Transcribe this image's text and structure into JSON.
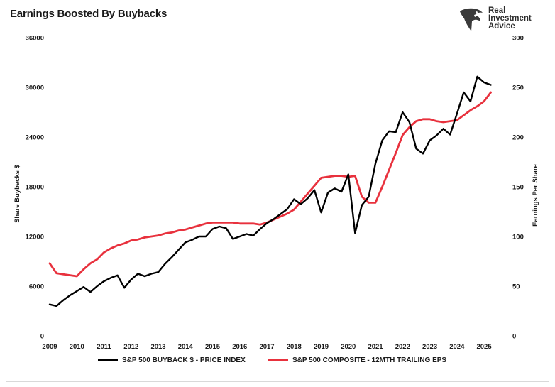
{
  "header": {
    "title": "Earnings Boosted By Buybacks",
    "logo": {
      "line1": "Real",
      "line2": "Investment",
      "line3": "Advice",
      "icon": "eagle-head-icon"
    }
  },
  "chart_data": {
    "type": "line",
    "title": "Earnings Boosted By Buybacks",
    "xlabel": "",
    "ylabel": "Share Buybacks $",
    "y2label": "Earnings Per Share",
    "xlim": [
      2009,
      2025.6
    ],
    "ylim": [
      0,
      36000
    ],
    "y2lim": [
      0,
      300
    ],
    "x_ticks": [
      "2009",
      "2010",
      "2011",
      "2012",
      "2013",
      "2014",
      "2015",
      "2016",
      "2017",
      "2018",
      "2019",
      "2020",
      "2021",
      "2022",
      "2023",
      "2024",
      "2025"
    ],
    "y_ticks": [
      "0",
      "6000",
      "12000",
      "18000",
      "24000",
      "30000",
      "36000"
    ],
    "y2_ticks": [
      "0",
      "50",
      "100",
      "150",
      "200",
      "250",
      "300"
    ],
    "grid": false,
    "legend_position": "bottom",
    "series": [
      {
        "name": "S&P 500 BUYBACK $ - PRICE INDEX",
        "axis": "left",
        "color": "#000000",
        "x": [
          2009.0,
          2009.25,
          2009.5,
          2009.75,
          2010.0,
          2010.25,
          2010.5,
          2010.75,
          2011.0,
          2011.25,
          2011.5,
          2011.75,
          2012.0,
          2012.25,
          2012.5,
          2012.75,
          2013.0,
          2013.25,
          2013.5,
          2013.75,
          2014.0,
          2014.25,
          2014.5,
          2014.75,
          2015.0,
          2015.25,
          2015.5,
          2015.75,
          2016.0,
          2016.25,
          2016.5,
          2016.75,
          2017.0,
          2017.25,
          2017.5,
          2017.75,
          2018.0,
          2018.25,
          2018.5,
          2018.75,
          2019.0,
          2019.25,
          2019.5,
          2019.75,
          2020.0,
          2020.25,
          2020.5,
          2020.75,
          2021.0,
          2021.25,
          2021.5,
          2021.75,
          2022.0,
          2022.25,
          2022.5,
          2022.75,
          2023.0,
          2023.25,
          2023.5,
          2023.75,
          2024.0,
          2024.25,
          2024.5,
          2024.75,
          2025.0,
          2025.25
        ],
        "y": [
          3800,
          3600,
          4300,
          4900,
          5400,
          5900,
          5300,
          6000,
          6600,
          7000,
          7300,
          5800,
          6800,
          7500,
          7200,
          7500,
          7700,
          8700,
          9500,
          10400,
          11300,
          11600,
          12000,
          12000,
          12900,
          13200,
          13000,
          11700,
          12000,
          12300,
          12100,
          12900,
          13600,
          14100,
          14700,
          15300,
          16500,
          15900,
          16600,
          17600,
          14900,
          17300,
          17800,
          17400,
          19500,
          12400,
          15800,
          16800,
          20800,
          23600,
          24700,
          24600,
          27000,
          25800,
          22600,
          22000,
          23600,
          24200,
          25000,
          24300,
          26800,
          29400,
          28300,
          31300,
          30600,
          30300
        ]
      },
      {
        "name": "S&P 500 COMPOSITE - 12MTH TRAILING EPS",
        "axis": "right",
        "color": "#e8313d",
        "x": [
          2009.0,
          2009.25,
          2009.5,
          2009.75,
          2010.0,
          2010.25,
          2010.5,
          2010.75,
          2011.0,
          2011.25,
          2011.5,
          2011.75,
          2012.0,
          2012.25,
          2012.5,
          2012.75,
          2013.0,
          2013.25,
          2013.5,
          2013.75,
          2014.0,
          2014.25,
          2014.5,
          2014.75,
          2015.0,
          2015.25,
          2015.5,
          2015.75,
          2016.0,
          2016.25,
          2016.5,
          2016.75,
          2017.0,
          2017.25,
          2017.5,
          2017.75,
          2018.0,
          2018.25,
          2018.5,
          2018.75,
          2019.0,
          2019.25,
          2019.5,
          2019.75,
          2020.0,
          2020.25,
          2020.5,
          2020.75,
          2021.0,
          2021.25,
          2021.5,
          2021.75,
          2022.0,
          2022.25,
          2022.5,
          2022.75,
          2023.0,
          2023.25,
          2023.5,
          2023.75,
          2024.0,
          2024.25,
          2024.5,
          2024.75,
          2025.0,
          2025.25
        ],
        "y": [
          73,
          63,
          62,
          61,
          60,
          67,
          73,
          77,
          84,
          88,
          91,
          93,
          96,
          97,
          99,
          100,
          101,
          103,
          104,
          106,
          107,
          109,
          111,
          113,
          114,
          114,
          114,
          114,
          113,
          113,
          113,
          112,
          114,
          117,
          120,
          123,
          127,
          135,
          143,
          151,
          159,
          160,
          161,
          161,
          160,
          161,
          140,
          134,
          134,
          150,
          167,
          184,
          202,
          210,
          216,
          218,
          218,
          216,
          215,
          216,
          217,
          222,
          227,
          231,
          236,
          245
        ]
      }
    ]
  }
}
